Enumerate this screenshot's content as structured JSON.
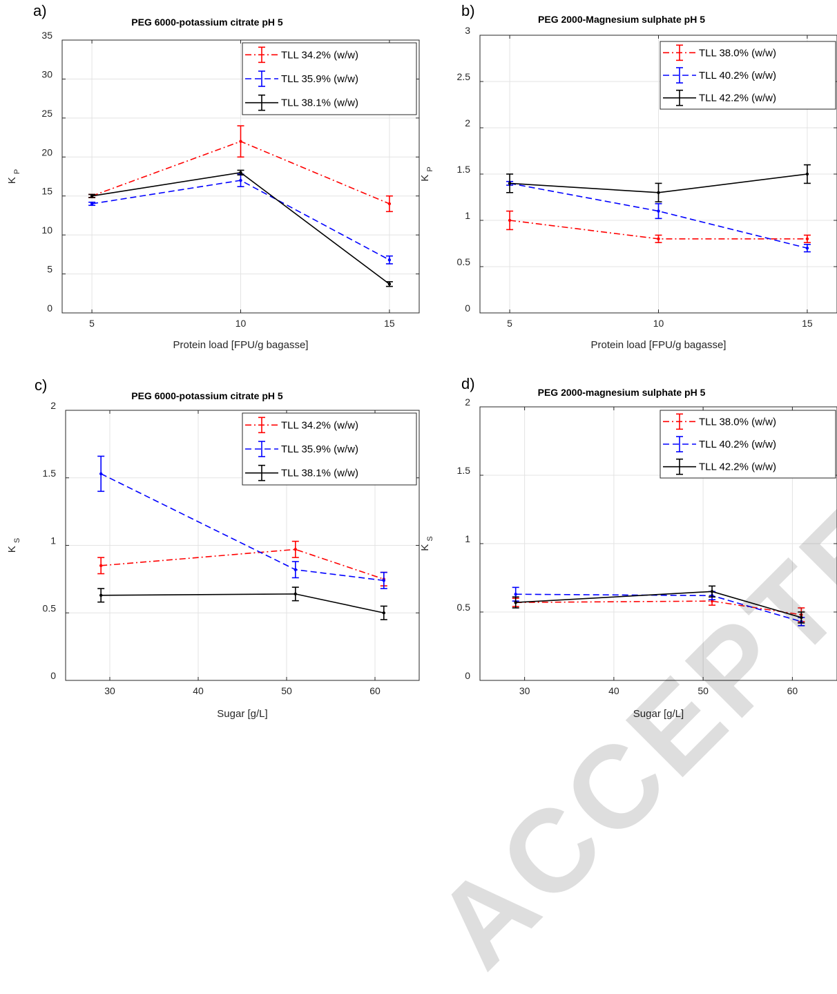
{
  "watermark": "ACCEPTED MANUSCRIPT",
  "colors": {
    "red": "#ff0000",
    "blue": "#0000ff",
    "black": "#000000",
    "grid": "#e3e3e3"
  },
  "chart_data": [
    {
      "type": "line",
      "panel_label": "a)",
      "title": "PEG 6000-potassium citrate pH 5",
      "xlabel": "Protein load [FPU/g bagasse]",
      "ylabel": "K",
      "ylabel_sub": "P",
      "xlim": [
        4,
        16
      ],
      "ylim": [
        0,
        35
      ],
      "xticks": [
        5,
        10,
        15
      ],
      "xtick_labels": [
        "5",
        "10",
        "15"
      ],
      "yticks": [
        0,
        5,
        10,
        15,
        20,
        25,
        30,
        35
      ],
      "ytick_labels": [
        "0",
        "5",
        "10",
        "15",
        "20",
        "25",
        "30",
        "35"
      ],
      "grid": true,
      "legend": "top-right",
      "series": [
        {
          "name": "TLL 34.2% (w/w)",
          "color": "red",
          "dash": "dashdot",
          "x": [
            5,
            10,
            15
          ],
          "y": [
            15,
            22,
            14
          ],
          "err": [
            0.2,
            2.0,
            1.0
          ]
        },
        {
          "name": "TLL 35.9% (w/w)",
          "color": "blue",
          "dash": "dashed",
          "x": [
            5,
            10,
            15
          ],
          "y": [
            14,
            17,
            6.8
          ],
          "err": [
            0.2,
            0.8,
            0.5
          ]
        },
        {
          "name": "TLL 38.1% (w/w)",
          "color": "black",
          "dash": "solid",
          "x": [
            5,
            10,
            15
          ],
          "y": [
            15,
            18,
            3.7
          ],
          "err": [
            0.2,
            0.3,
            0.3
          ]
        }
      ]
    },
    {
      "type": "line",
      "panel_label": "b)",
      "title": "PEG 2000-Magnesium sulphate pH 5",
      "xlabel": "Protein load [FPU/g bagasse]",
      "ylabel": "K",
      "ylabel_sub": "P",
      "xlim": [
        4,
        16
      ],
      "ylim": [
        0,
        3
      ],
      "xticks": [
        5,
        10,
        15
      ],
      "xtick_labels": [
        "5",
        "10",
        "15"
      ],
      "yticks": [
        0,
        0.5,
        1,
        1.5,
        2,
        2.5,
        3
      ],
      "ytick_labels": [
        "0",
        "0.5",
        "1",
        "1.5",
        "2",
        "2.5",
        "3"
      ],
      "grid": true,
      "legend": "top-right",
      "series": [
        {
          "name": "TLL 38.0% (w/w)",
          "color": "red",
          "dash": "dashdot",
          "x": [
            5,
            10,
            15
          ],
          "y": [
            1.0,
            0.8,
            0.8
          ],
          "err": [
            0.1,
            0.04,
            0.04
          ]
        },
        {
          "name": "TLL 40.2% (w/w)",
          "color": "blue",
          "dash": "dashed",
          "x": [
            5,
            10,
            15
          ],
          "y": [
            1.4,
            1.1,
            0.7
          ],
          "err": [
            0.02,
            0.08,
            0.04
          ]
        },
        {
          "name": "TLL 42.2% (w/w)",
          "color": "black",
          "dash": "solid",
          "x": [
            5,
            10,
            15
          ],
          "y": [
            1.4,
            1.3,
            1.5
          ],
          "err": [
            0.1,
            0.1,
            0.1
          ]
        }
      ]
    },
    {
      "type": "line",
      "panel_label": "c)",
      "title": "PEG 6000-potassium citrate pH 5",
      "xlabel": "Sugar [g/L]",
      "ylabel": "K",
      "ylabel_sub": "S",
      "xlim": [
        25,
        65
      ],
      "ylim": [
        0,
        2
      ],
      "xticks": [
        30,
        40,
        50,
        60
      ],
      "xtick_labels": [
        "30",
        "40",
        "50",
        "60"
      ],
      "yticks": [
        0,
        0.5,
        1,
        1.5,
        2
      ],
      "ytick_labels": [
        "0",
        "0.5",
        "1",
        "1.5",
        "2"
      ],
      "grid": true,
      "legend": "top-right",
      "series": [
        {
          "name": "TLL 34.2% (w/w)",
          "color": "red",
          "dash": "dashdot",
          "x": [
            29,
            51,
            61
          ],
          "y": [
            0.85,
            0.97,
            0.75
          ],
          "err": [
            0.06,
            0.06,
            0.05
          ]
        },
        {
          "name": "TLL 35.9% (w/w)",
          "color": "blue",
          "dash": "dashed",
          "x": [
            29,
            51,
            61
          ],
          "y": [
            1.53,
            0.82,
            0.74
          ],
          "err": [
            0.13,
            0.06,
            0.06
          ]
        },
        {
          "name": "TLL 38.1% (w/w)",
          "color": "black",
          "dash": "solid",
          "x": [
            29,
            51,
            61
          ],
          "y": [
            0.63,
            0.64,
            0.5
          ],
          "err": [
            0.05,
            0.05,
            0.05
          ]
        }
      ]
    },
    {
      "type": "line",
      "panel_label": "d)",
      "title": "PEG 2000-magnesium sulphate pH 5",
      "xlabel": "Sugar [g/L]",
      "ylabel": "K",
      "ylabel_sub": "S",
      "xlim": [
        25,
        65
      ],
      "ylim": [
        0,
        2
      ],
      "xticks": [
        30,
        40,
        50,
        60
      ],
      "xtick_labels": [
        "30",
        "40",
        "50",
        "60"
      ],
      "yticks": [
        0,
        0.5,
        1,
        1.5,
        2
      ],
      "ytick_labels": [
        "0",
        "0.5",
        "1",
        "1.5",
        "2"
      ],
      "grid": true,
      "legend": "top-right",
      "series": [
        {
          "name": "TLL 38.0% (w/w)",
          "color": "red",
          "dash": "dashdot",
          "x": [
            29,
            51,
            61
          ],
          "y": [
            0.57,
            0.58,
            0.48
          ],
          "err": [
            0.03,
            0.03,
            0.05
          ]
        },
        {
          "name": "TLL 40.2% (w/w)",
          "color": "blue",
          "dash": "dashed",
          "x": [
            29,
            51,
            61
          ],
          "y": [
            0.63,
            0.62,
            0.43
          ],
          "err": [
            0.05,
            0.03,
            0.03
          ]
        },
        {
          "name": "TLL 42.2% (w/w)",
          "color": "black",
          "dash": "solid",
          "x": [
            29,
            51,
            61
          ],
          "y": [
            0.57,
            0.65,
            0.46
          ],
          "err": [
            0.04,
            0.04,
            0.04
          ]
        }
      ]
    }
  ]
}
